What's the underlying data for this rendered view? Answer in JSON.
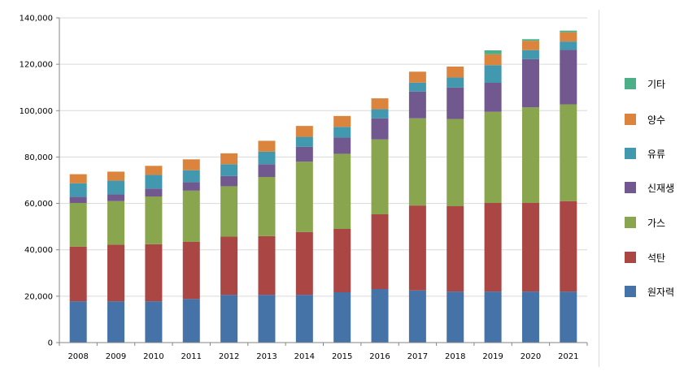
{
  "chart_data": {
    "type": "bar",
    "stacked": true,
    "categories": [
      "2008",
      "2009",
      "2010",
      "2011",
      "2012",
      "2013",
      "2014",
      "2015",
      "2016",
      "2017",
      "2018",
      "2019",
      "2020",
      "2021"
    ],
    "series": [
      {
        "name": "원자력",
        "color": "#4572A7",
        "values": [
          17800,
          17800,
          17800,
          18800,
          20600,
          20600,
          20600,
          21700,
          23100,
          22500,
          22000,
          22000,
          22000,
          22000
        ]
      },
      {
        "name": "석탄",
        "color": "#AA4643",
        "values": [
          23600,
          24400,
          24600,
          24600,
          25100,
          25300,
          27100,
          27300,
          32200,
          36600,
          36800,
          38200,
          38200,
          39000
        ]
      },
      {
        "name": "가스",
        "color": "#89A54E",
        "values": [
          18800,
          18800,
          20600,
          22100,
          21700,
          25500,
          30300,
          32400,
          32300,
          37600,
          37600,
          39300,
          41200,
          41700
        ]
      },
      {
        "name": "신재생",
        "color": "#71588F",
        "values": [
          2600,
          2900,
          3400,
          3600,
          4400,
          5500,
          6400,
          7000,
          9100,
          11500,
          13600,
          12500,
          20800,
          23500
        ]
      },
      {
        "name": "유류",
        "color": "#4198AF",
        "values": [
          5900,
          5900,
          5900,
          5200,
          5100,
          5400,
          4300,
          4600,
          3900,
          3900,
          4300,
          7600,
          3900,
          3600
        ]
      },
      {
        "name": "양수",
        "color": "#DB843D",
        "values": [
          3900,
          3900,
          3900,
          4700,
          4700,
          4700,
          4700,
          4700,
          4700,
          4700,
          4700,
          4700,
          4000,
          4000
        ]
      },
      {
        "name": "기타",
        "color": "#4DAF88",
        "values": [
          0,
          0,
          0,
          0,
          0,
          0,
          0,
          0,
          0,
          0,
          0,
          1700,
          700,
          700
        ]
      }
    ],
    "yticks": [
      "0",
      "20,000",
      "40,000",
      "60,000",
      "80,000",
      "100,000",
      "120,000",
      "140,000"
    ],
    "ylim": [
      0,
      140000
    ],
    "grid": true,
    "legend_position": "right"
  }
}
